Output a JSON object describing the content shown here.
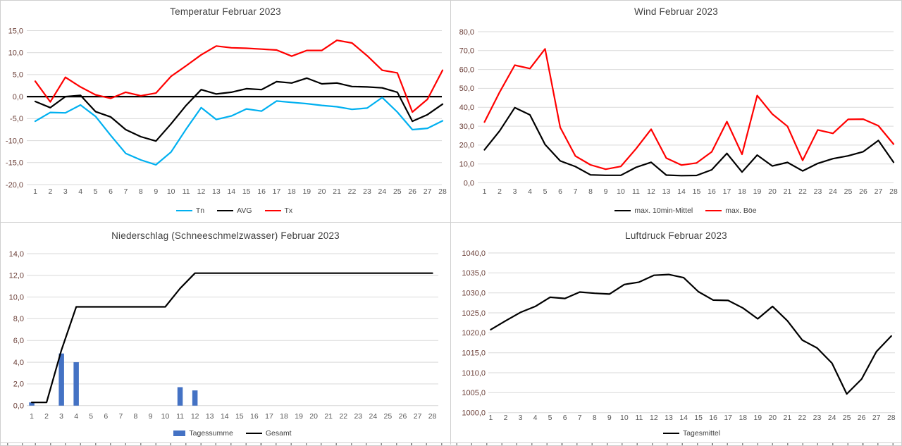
{
  "colors": {
    "grid": "#d9d9d9",
    "zero_axis": "#000000",
    "title": "#404040",
    "y_tick": "#693c35",
    "x_tick": "#595959",
    "tn_blue": "#00B0F0",
    "series_red": "#FF0000",
    "series_black": "#000000",
    "bar_blue": "#4472C4"
  },
  "days": [
    "1",
    "2",
    "3",
    "4",
    "5",
    "6",
    "7",
    "8",
    "9",
    "10",
    "11",
    "12",
    "13",
    "14",
    "15",
    "16",
    "17",
    "18",
    "19",
    "20",
    "21",
    "22",
    "23",
    "24",
    "25",
    "26",
    "27",
    "28"
  ],
  "chart_data": [
    {
      "id": "temperatur",
      "type": "line",
      "title": "Temperatur Februar 2023",
      "xlabel": "",
      "ylabel": "",
      "x": "days",
      "legend_position": "bottom",
      "grid": true,
      "y_axis": {
        "min": -20,
        "max": 15,
        "step": 5,
        "zero_axis": true,
        "ticks": [
          {
            "v": 15,
            "label": "15,0"
          },
          {
            "v": 10,
            "label": "10,0"
          },
          {
            "v": 5,
            "label": "5,0"
          },
          {
            "v": 0,
            "label": "0,0"
          },
          {
            "v": -5,
            "label": "-5,0"
          },
          {
            "v": -10,
            "label": "-10,0"
          },
          {
            "v": -15,
            "label": "-15,0"
          },
          {
            "v": -20,
            "label": "-20,0"
          }
        ]
      },
      "series": [
        {
          "name": "Tn",
          "type": "line",
          "color": "#00B0F0",
          "values": [
            -5.6,
            -3.6,
            -3.7,
            -1.9,
            -4.5,
            -8.8,
            -12.9,
            -14.4,
            -15.5,
            -12.6,
            -7.4,
            -2.5,
            -5.2,
            -4.4,
            -2.8,
            -3.3,
            -1.0,
            -1.3,
            -1.6,
            -2.0,
            -2.3,
            -2.9,
            -2.6,
            -0.2,
            -3.5,
            -7.5,
            -7.2,
            -5.5
          ]
        },
        {
          "name": "AVG",
          "type": "line",
          "color": "#000000",
          "values": [
            -1.1,
            -2.5,
            0.0,
            0.3,
            -3.4,
            -4.6,
            -7.5,
            -9.1,
            -10.1,
            -6.2,
            -2.0,
            1.6,
            0.6,
            1.0,
            1.8,
            1.6,
            3.4,
            3.1,
            4.2,
            2.9,
            3.1,
            2.3,
            2.2,
            2.0,
            1.0,
            -5.6,
            -4.1,
            -1.7
          ]
        },
        {
          "name": "Tx",
          "type": "line",
          "color": "#FF0000",
          "values": [
            3.5,
            -1.2,
            4.4,
            2.2,
            0.4,
            -0.4,
            1.0,
            0.2,
            0.8,
            4.6,
            7.0,
            9.5,
            11.5,
            11.1,
            11.0,
            10.8,
            10.6,
            9.2,
            10.5,
            10.5,
            12.8,
            12.2,
            9.3,
            6.0,
            5.4,
            -3.5,
            -0.6,
            6.0
          ]
        }
      ]
    },
    {
      "id": "wind",
      "type": "line",
      "title": "Wind Februar 2023",
      "xlabel": "",
      "ylabel": "",
      "x": "days",
      "legend_position": "bottom",
      "grid": true,
      "y_axis": {
        "min": 0,
        "max": 80,
        "step": 10,
        "zero_axis": false,
        "ticks": [
          {
            "v": 80,
            "label": "80,0"
          },
          {
            "v": 70,
            "label": "70,0"
          },
          {
            "v": 60,
            "label": "60,0"
          },
          {
            "v": 50,
            "label": "50,0"
          },
          {
            "v": 40,
            "label": "40,0"
          },
          {
            "v": 30,
            "label": "30,0"
          },
          {
            "v": 20,
            "label": "20,0"
          },
          {
            "v": 10,
            "label": "10,0"
          },
          {
            "v": 0,
            "label": "0,0"
          }
        ]
      },
      "series": [
        {
          "name": "max. 10min-Mittel",
          "type": "line",
          "color": "#000000",
          "values": [
            17.5,
            27.5,
            39.8,
            36.0,
            20.3,
            11.6,
            8.6,
            4.2,
            4.0,
            4.0,
            8.2,
            10.9,
            4.1,
            3.8,
            3.9,
            6.9,
            15.6,
            5.7,
            14.7,
            8.9,
            10.8,
            6.3,
            10.3,
            12.8,
            14.3,
            16.5,
            22.4,
            10.9
          ]
        },
        {
          "name": "max. Böe",
          "type": "line",
          "color": "#FF0000",
          "values": [
            32.2,
            48.0,
            62.3,
            60.5,
            70.9,
            29.3,
            14.2,
            9.5,
            7.2,
            8.7,
            18.0,
            28.4,
            13.1,
            9.4,
            10.5,
            16.4,
            32.4,
            15.1,
            46.2,
            36.4,
            29.9,
            11.9,
            28.0,
            26.2,
            33.6,
            33.7,
            30.2,
            20.5
          ]
        }
      ]
    },
    {
      "id": "niederschlag",
      "type": "bar",
      "title": "Niederschlag (Schneeschmelzwasser) Februar 2023",
      "xlabel": "",
      "ylabel": "",
      "x": "days",
      "legend_position": "bottom",
      "grid": true,
      "y_axis": {
        "min": 0,
        "max": 14,
        "step": 2,
        "zero_axis": false,
        "ticks": [
          {
            "v": 14,
            "label": "14,0"
          },
          {
            "v": 12,
            "label": "12,0"
          },
          {
            "v": 10,
            "label": "10,0"
          },
          {
            "v": 8,
            "label": "8,0"
          },
          {
            "v": 6,
            "label": "6,0"
          },
          {
            "v": 4,
            "label": "4,0"
          },
          {
            "v": 2,
            "label": "2,0"
          },
          {
            "v": 0,
            "label": "0,0"
          }
        ]
      },
      "series": [
        {
          "name": "Tagessumme",
          "type": "bar",
          "color": "#4472C4",
          "values": [
            0.3,
            0,
            4.8,
            4.0,
            0,
            0,
            0,
            0,
            0,
            0,
            1.7,
            1.4,
            0,
            0,
            0,
            0,
            0,
            0,
            0,
            0,
            0,
            0,
            0,
            0,
            0,
            0,
            0,
            0
          ]
        },
        {
          "name": "Gesamt",
          "type": "line",
          "color": "#000000",
          "values": [
            0.3,
            0.3,
            5.1,
            9.1,
            9.1,
            9.1,
            9.1,
            9.1,
            9.1,
            9.1,
            10.8,
            12.2,
            12.2,
            12.2,
            12.2,
            12.2,
            12.2,
            12.2,
            12.2,
            12.2,
            12.2,
            12.2,
            12.2,
            12.2,
            12.2,
            12.2,
            12.2,
            12.2
          ]
        }
      ]
    },
    {
      "id": "luftdruck",
      "type": "line",
      "title": "Luftdruck Februar 2023",
      "xlabel": "",
      "ylabel": "",
      "x": "days",
      "legend_position": "bottom",
      "grid": true,
      "y_axis": {
        "min": 1000,
        "max": 1040,
        "step": 5,
        "zero_axis": false,
        "ticks": [
          {
            "v": 1040,
            "label": "1040,0"
          },
          {
            "v": 1035,
            "label": "1035,0"
          },
          {
            "v": 1030,
            "label": "1030,0"
          },
          {
            "v": 1025,
            "label": "1025,0"
          },
          {
            "v": 1020,
            "label": "1020,0"
          },
          {
            "v": 1015,
            "label": "1015,0"
          },
          {
            "v": 1010,
            "label": "1010,0"
          },
          {
            "v": 1005,
            "label": "1005,0"
          },
          {
            "v": 1000,
            "label": "1000,0"
          }
        ]
      },
      "series": [
        {
          "name": "Tagesmittel",
          "type": "line",
          "color": "#000000",
          "values": [
            1020.8,
            1023.0,
            1025.1,
            1026.6,
            1028.9,
            1028.6,
            1030.2,
            1029.9,
            1029.7,
            1032.1,
            1032.7,
            1034.4,
            1034.6,
            1033.8,
            1030.3,
            1028.2,
            1028.1,
            1026.2,
            1023.5,
            1026.6,
            1023.0,
            1018.2,
            1016.2,
            1012.4,
            1004.7,
            1008.4,
            1015.3,
            1019.2
          ]
        }
      ]
    }
  ]
}
